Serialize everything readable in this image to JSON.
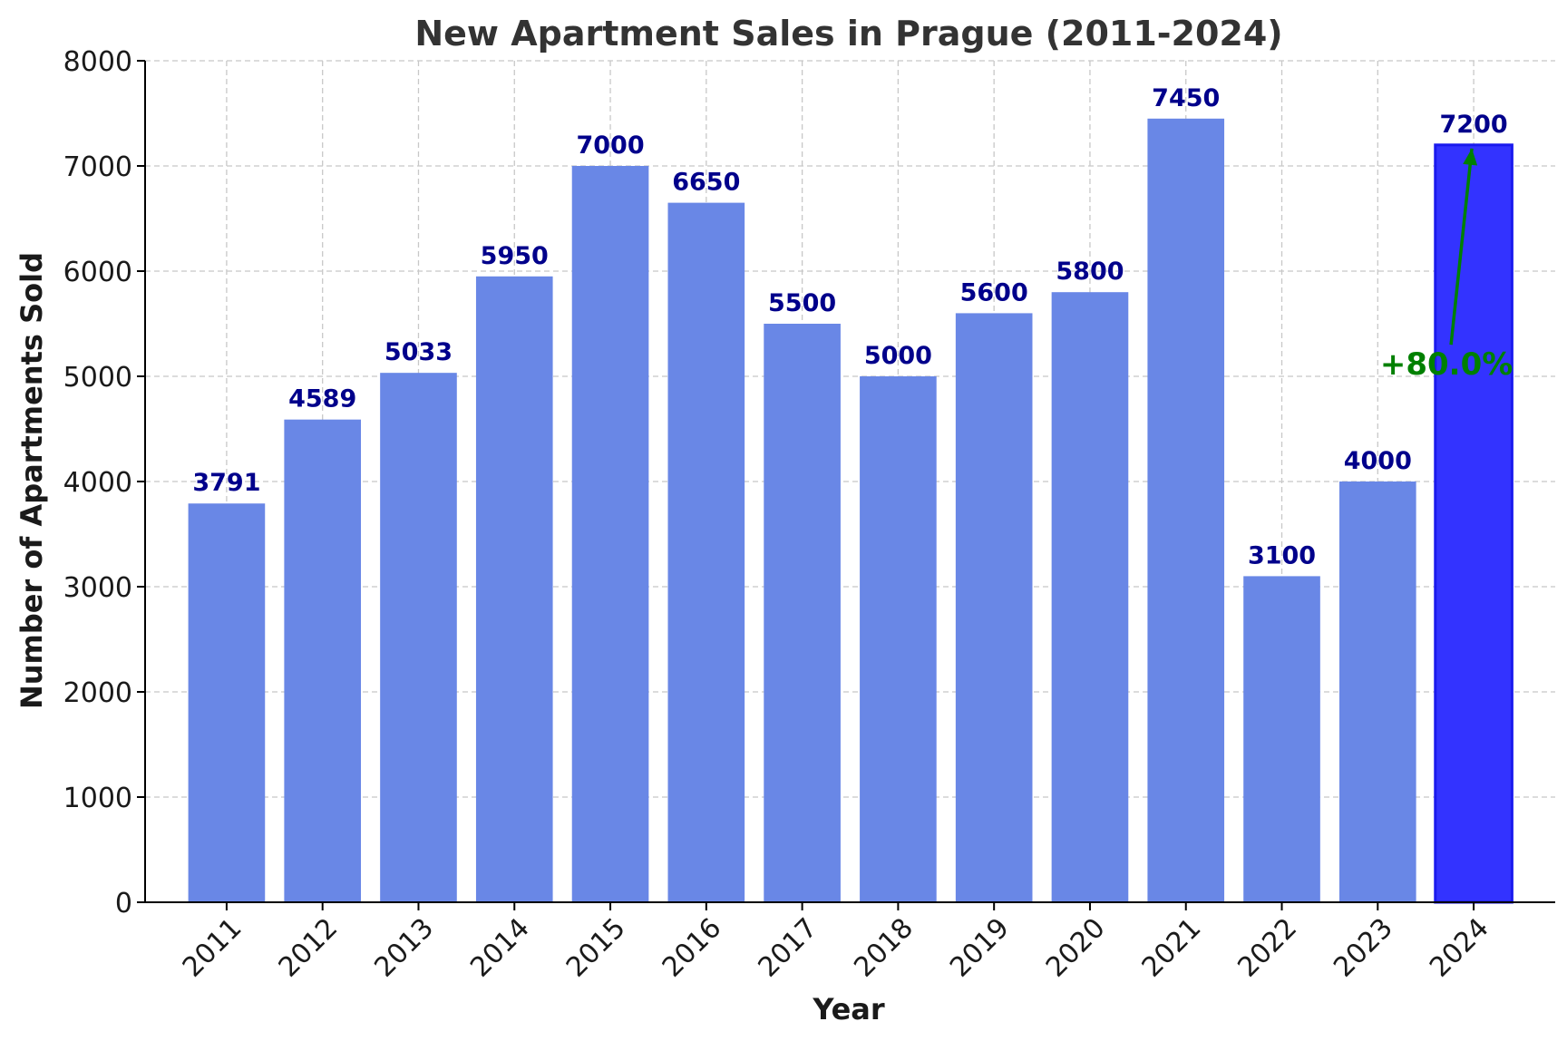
{
  "chart_data": {
    "type": "bar",
    "title": "New Apartment Sales in Prague (2011-2024)",
    "xlabel": "Year",
    "ylabel": "Number of Apartments Sold",
    "categories": [
      "2011",
      "2012",
      "2013",
      "2014",
      "2015",
      "2016",
      "2017",
      "2018",
      "2019",
      "2020",
      "2021",
      "2022",
      "2023",
      "2024"
    ],
    "values": [
      3791,
      4589,
      5033,
      5950,
      7000,
      6650,
      5500,
      5000,
      5600,
      5800,
      7450,
      3100,
      4000,
      7200
    ],
    "data_labels": [
      "3791",
      "4589",
      "5033",
      "5950",
      "7000",
      "6650",
      "5500",
      "5000",
      "5600",
      "5800",
      "7450",
      "3100",
      "4000",
      "7200"
    ],
    "ylim": [
      0,
      8000
    ],
    "yticks": [
      0,
      1000,
      2000,
      3000,
      4000,
      5000,
      6000,
      7000,
      8000
    ],
    "ytick_labels": [
      "0",
      "1000",
      "2000",
      "3000",
      "4000",
      "5000",
      "6000",
      "7000",
      "8000"
    ],
    "grid": true,
    "colors": {
      "bar": "#6987e6",
      "highlight_bar": "#3333ff",
      "highlight_edge": "#1a1aee",
      "data_label": "#00008b",
      "annotation": "#008000"
    },
    "highlight_index": 13,
    "annotation": {
      "text": "+80.0%",
      "category": "2024",
      "text_value": 5000,
      "arrow_from_value": 5300,
      "arrow_to_value": 7200
    }
  }
}
